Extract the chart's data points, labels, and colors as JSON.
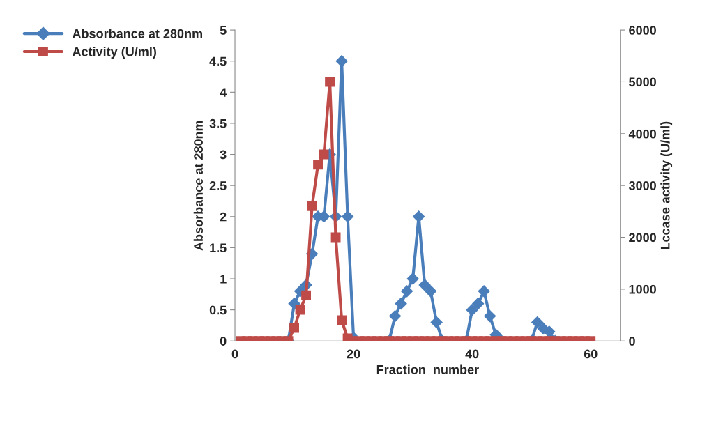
{
  "chart_data": {
    "type": "line",
    "xlabel": "Fraction  number",
    "ylabel": "Absorbance at 280nm",
    "y2label": "Lccase activity (U/ml)",
    "x": [
      1,
      2,
      3,
      4,
      5,
      6,
      7,
      8,
      9,
      10,
      11,
      12,
      13,
      14,
      15,
      16,
      17,
      18,
      19,
      20,
      21,
      22,
      23,
      24,
      25,
      26,
      27,
      28,
      29,
      30,
      31,
      32,
      33,
      34,
      35,
      36,
      37,
      38,
      39,
      40,
      41,
      42,
      43,
      44,
      45,
      46,
      47,
      48,
      49,
      50,
      51,
      52,
      53,
      54,
      55,
      56,
      57,
      58,
      59,
      60
    ],
    "series": [
      {
        "name": "Absorbance at 280nm",
        "color": "#4a7ebb",
        "marker": "diamond",
        "values": [
          null,
          null,
          null,
          null,
          null,
          null,
          null,
          null,
          0,
          0.6,
          0.8,
          0.9,
          1.4,
          2,
          2,
          3,
          2,
          4.5,
          2,
          0.05,
          null,
          null,
          null,
          null,
          null,
          0,
          0.4,
          0.6,
          0.8,
          1,
          2,
          0.9,
          0.8,
          0.3,
          0,
          null,
          null,
          null,
          0,
          0.5,
          0.6,
          0.8,
          0.4,
          0.1,
          0,
          null,
          null,
          null,
          null,
          0,
          0.3,
          0.2,
          0.15,
          0,
          null,
          null,
          null,
          null,
          null,
          null
        ]
      },
      {
        "name": "Activity (U/ml)",
        "color": "#be4b48",
        "marker": "square",
        "axis": "y2",
        "values": [
          0,
          0,
          0,
          0,
          0,
          0,
          0,
          0,
          0,
          250,
          600,
          880,
          2600,
          3400,
          3600,
          5000,
          2000,
          400,
          50,
          0,
          0,
          0,
          0,
          0,
          0,
          0,
          0,
          0,
          0,
          0,
          0,
          0,
          0,
          0,
          0,
          0,
          0,
          0,
          0,
          0,
          0,
          0,
          0,
          0,
          0,
          0,
          0,
          0,
          0,
          0,
          0,
          0,
          0,
          0,
          0,
          0,
          0,
          0,
          0,
          0
        ]
      }
    ],
    "xlim": [
      0,
      65
    ],
    "xticks": [
      0,
      20,
      40,
      60
    ],
    "ylim": [
      0,
      5
    ],
    "yticks": [
      0,
      0.5,
      1,
      1.5,
      2,
      2.5,
      3,
      3.5,
      4,
      4.5,
      5
    ],
    "y2lim": [
      0,
      6000
    ],
    "y2ticks": [
      0,
      1000,
      2000,
      3000,
      4000,
      5000,
      6000
    ],
    "grid": false,
    "legend": "left",
    "line_style": "solid"
  }
}
